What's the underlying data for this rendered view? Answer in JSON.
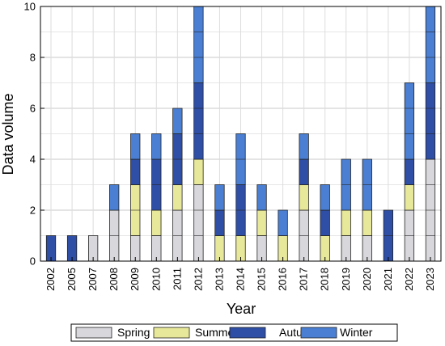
{
  "chart_data": {
    "type": "bar",
    "stacked": true,
    "xlabel": "Year",
    "ylabel": "Data volume",
    "ylim": [
      0,
      10
    ],
    "yticks": [
      0,
      2,
      4,
      6,
      8,
      10
    ],
    "grid": true,
    "legend_position": "bottom",
    "categories": [
      "2002",
      "2005",
      "2007",
      "2008",
      "2009",
      "2010",
      "2011",
      "2012",
      "2013",
      "2014",
      "2015",
      "2016",
      "2017",
      "2018",
      "2019",
      "2020",
      "2021",
      "2022",
      "2023"
    ],
    "series": [
      {
        "name": "Spring",
        "color": "#d8d8dc",
        "values": [
          0,
          0,
          1,
          2,
          1,
          1,
          2,
          3,
          0,
          0,
          1,
          0,
          2,
          0,
          1,
          1,
          0,
          2,
          4
        ]
      },
      {
        "name": "Summer",
        "color": "#e8e89a",
        "values": [
          0,
          0,
          0,
          0,
          2,
          1,
          1,
          1,
          1,
          1,
          1,
          1,
          1,
          1,
          1,
          1,
          0,
          1,
          0
        ]
      },
      {
        "name": "Autumn",
        "color": "#2f4fa6",
        "values": [
          1,
          1,
          0,
          0,
          1,
          2,
          2,
          3,
          1,
          2,
          0,
          0,
          1,
          1,
          0,
          0,
          2,
          1,
          3
        ]
      },
      {
        "name": "Winter",
        "color": "#4a7fd4",
        "values": [
          0,
          0,
          0,
          1,
          1,
          1,
          1,
          3,
          1,
          2,
          1,
          1,
          1,
          1,
          2,
          2,
          0,
          3,
          3
        ]
      }
    ]
  }
}
